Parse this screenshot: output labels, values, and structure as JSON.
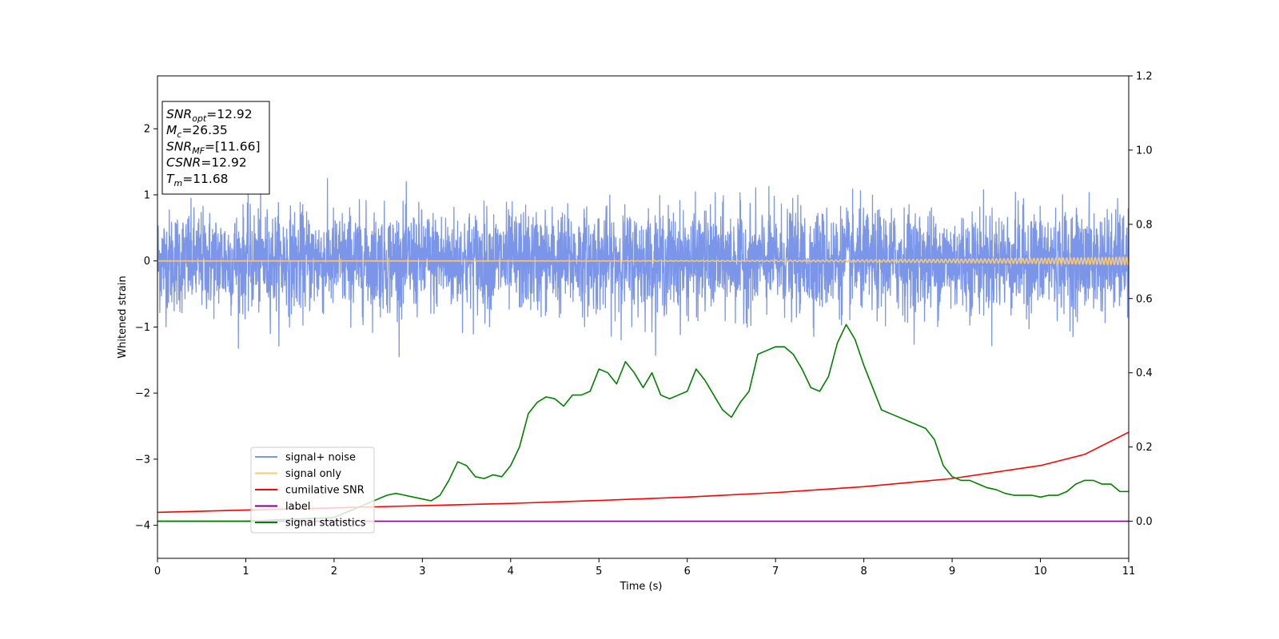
{
  "chart_data": {
    "type": "line",
    "xlabel": "Time (s)",
    "ylabel": "Whitened strain",
    "xlim": [
      0,
      11
    ],
    "ylim_left": [
      -4.5,
      2.8
    ],
    "ylim_right": [
      -0.1,
      1.2
    ],
    "x_ticks": [
      0,
      1,
      2,
      3,
      4,
      5,
      6,
      7,
      8,
      9,
      10,
      11
    ],
    "y_ticks_left": [
      2,
      1,
      0,
      -1,
      -2,
      -3,
      -4
    ],
    "y_ticks_right": [
      1.2,
      1.0,
      0.8,
      0.6,
      0.4,
      0.2,
      0.0
    ],
    "grid": false,
    "legend_position": "lower-left",
    "annotation": {
      "lines": [
        {
          "var": "SNR",
          "sub": "opt",
          "value": "=12.92"
        },
        {
          "var": "M",
          "sub": "c",
          "value": "=26.35"
        },
        {
          "var": "SNR",
          "sub": "MF",
          "value": "=[11.66]"
        },
        {
          "var": "CSNR",
          "sub": "",
          "value": "=12.92"
        },
        {
          "var": "T",
          "sub": "m",
          "value": "=11.68"
        }
      ]
    },
    "series": [
      {
        "name": "signal+ noise",
        "axis": "left",
        "color": "#7b96e8",
        "style": "noise",
        "amplitude_std": 0.38,
        "peak_range": [
          -1.45,
          1.42
        ]
      },
      {
        "name": "signal only",
        "axis": "left",
        "color": "#f5c97a",
        "style": "chirp",
        "amplitude_end": 0.06
      },
      {
        "name": "cumilative SNR",
        "axis": "right",
        "color": "#ff0000",
        "x": [
          0,
          1,
          2,
          3,
          4,
          5,
          6,
          7,
          8,
          9,
          10,
          10.5,
          11
        ],
        "y": [
          0.024,
          0.03,
          0.036,
          0.042,
          0.048,
          0.056,
          0.065,
          0.077,
          0.093,
          0.115,
          0.15,
          0.18,
          0.24
        ]
      },
      {
        "name": "label",
        "axis": "right",
        "color": "#800080",
        "x": [
          0,
          11
        ],
        "y": [
          0.0,
          0.0
        ]
      },
      {
        "name": "signal statistics",
        "axis": "right",
        "color": "#008000",
        "x": [
          0,
          1.0,
          2.0,
          2.4,
          2.6,
          2.7,
          2.8,
          3.0,
          3.1,
          3.2,
          3.3,
          3.4,
          3.5,
          3.6,
          3.7,
          3.8,
          3.9,
          4.0,
          4.1,
          4.2,
          4.3,
          4.4,
          4.5,
          4.6,
          4.7,
          4.8,
          4.9,
          5.0,
          5.1,
          5.2,
          5.3,
          5.4,
          5.5,
          5.6,
          5.7,
          5.8,
          5.9,
          6.0,
          6.1,
          6.2,
          6.3,
          6.4,
          6.5,
          6.6,
          6.7,
          6.8,
          6.9,
          7.0,
          7.1,
          7.2,
          7.3,
          7.4,
          7.5,
          7.6,
          7.7,
          7.8,
          7.9,
          8.0,
          8.1,
          8.2,
          8.3,
          8.4,
          8.5,
          8.6,
          8.7,
          8.8,
          8.9,
          9.0,
          9.1,
          9.2,
          9.3,
          9.4,
          9.5,
          9.6,
          9.7,
          9.8,
          9.9,
          10.0,
          10.1,
          10.2,
          10.3,
          10.4,
          10.5,
          10.6,
          10.7,
          10.8,
          10.9,
          11.0
        ],
        "y": [
          0.0,
          0.0,
          0.01,
          0.05,
          0.07,
          0.075,
          0.07,
          0.06,
          0.055,
          0.07,
          0.11,
          0.16,
          0.15,
          0.12,
          0.115,
          0.125,
          0.12,
          0.15,
          0.2,
          0.29,
          0.32,
          0.335,
          0.33,
          0.31,
          0.34,
          0.34,
          0.35,
          0.41,
          0.4,
          0.37,
          0.43,
          0.4,
          0.36,
          0.4,
          0.34,
          0.33,
          0.34,
          0.35,
          0.41,
          0.38,
          0.34,
          0.3,
          0.28,
          0.32,
          0.35,
          0.45,
          0.46,
          0.47,
          0.47,
          0.45,
          0.41,
          0.36,
          0.35,
          0.39,
          0.48,
          0.53,
          0.49,
          0.42,
          0.36,
          0.3,
          0.29,
          0.28,
          0.27,
          0.26,
          0.25,
          0.22,
          0.15,
          0.12,
          0.11,
          0.11,
          0.1,
          0.09,
          0.085,
          0.075,
          0.07,
          0.07,
          0.07,
          0.065,
          0.07,
          0.07,
          0.08,
          0.1,
          0.11,
          0.11,
          0.1,
          0.1,
          0.08,
          0.08
        ]
      }
    ]
  }
}
